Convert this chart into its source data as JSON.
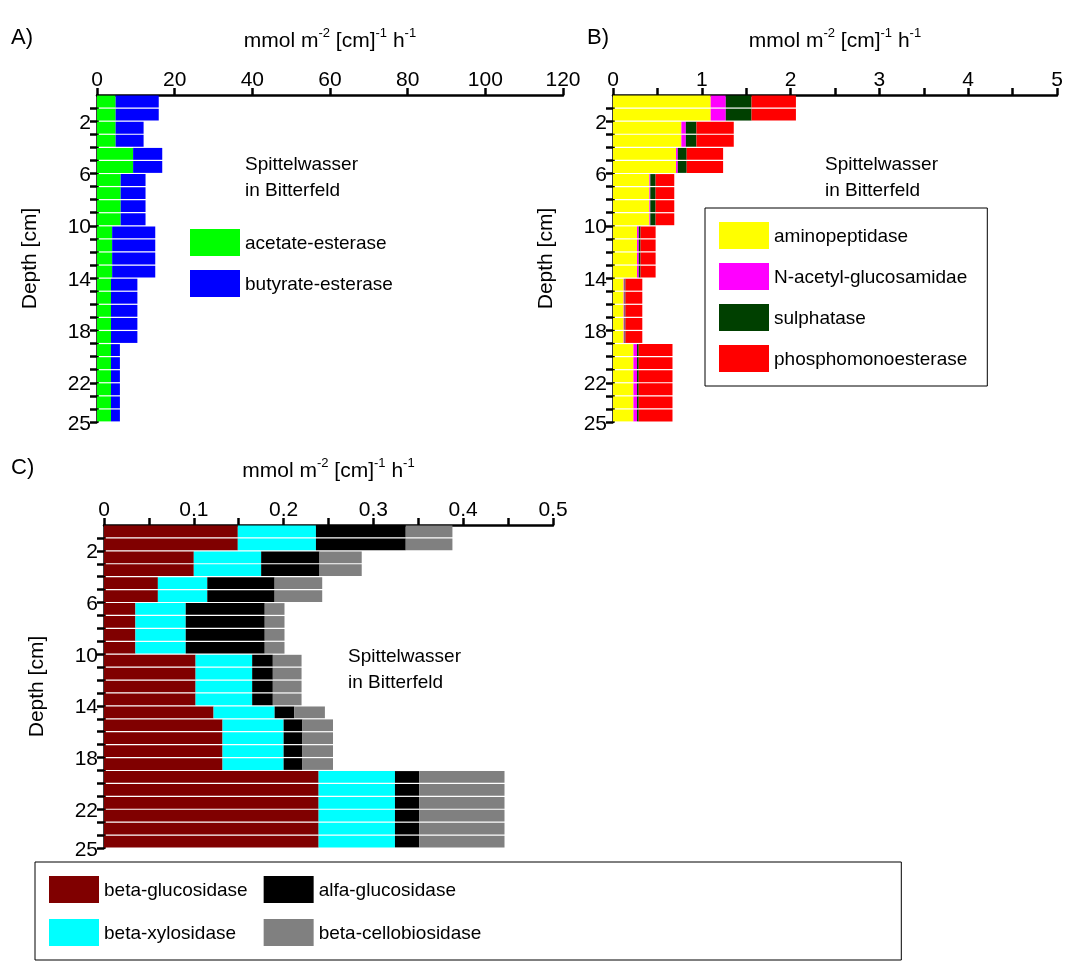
{
  "chart_data": [
    {
      "type": "bar",
      "orientation": "horizontal",
      "stacked": true,
      "title": "A)",
      "xlabel": "mmol m$^{-2}$ [cm]$^{-1}$ h$^{-1}$",
      "ylabel": "Depth [cm]",
      "x": [
        0.5,
        1.5,
        2.5,
        3.5,
        4.5,
        5.5,
        6.5,
        7.5,
        8.5,
        9.5,
        10.5,
        11.5,
        12.5,
        13.5,
        14.5,
        15.5,
        16.5,
        17.5,
        18.5,
        19.5,
        20.5,
        21.5,
        22.5,
        23.5,
        24.5
      ],
      "series": [
        {
          "name": "acetate-esterase",
          "color": "#00ff00",
          "values": [
            4.8,
            4.8,
            4.8,
            4.8,
            9.3,
            9.3,
            6.1,
            6.1,
            6.1,
            6.1,
            3.9,
            3.9,
            3.9,
            3.9,
            3.6,
            3.6,
            3.6,
            3.6,
            3.6,
            3.6,
            3.6,
            3.6,
            3.6,
            3.6,
            3.6
          ]
        },
        {
          "name": "butyrate-esterase",
          "color": "#0000ff",
          "values": [
            11.1,
            11.1,
            7.2,
            7.2,
            7.5,
            7.5,
            6.4,
            6.4,
            6.4,
            6.4,
            11.1,
            11.1,
            11.1,
            11.1,
            6.8,
            6.8,
            6.8,
            6.8,
            6.8,
            2.3,
            2.3,
            2.3,
            2.3,
            2.3,
            2.3
          ]
        }
      ],
      "xlim": [
        0,
        120
      ],
      "xticks": [
        0,
        20,
        40,
        60,
        80,
        100,
        120
      ],
      "ylim": [
        25,
        0
      ],
      "yticks": [
        {
          "value": 1,
          "label": null
        },
        2,
        {
          "value": 3,
          "label": null
        },
        {
          "value": 4,
          "label": null
        },
        {
          "value": 5,
          "label": null
        },
        6,
        {
          "value": 7,
          "label": null
        },
        {
          "value": 8,
          "label": null
        },
        {
          "value": 9,
          "label": null
        },
        10,
        {
          "value": 11,
          "label": null
        },
        {
          "value": 12,
          "label": null
        },
        {
          "value": 13,
          "label": null
        },
        14,
        {
          "value": 15,
          "label": null
        },
        {
          "value": 16,
          "label": null
        },
        {
          "value": 17,
          "label": null
        },
        18,
        {
          "value": 19,
          "label": null
        },
        {
          "value": 20,
          "label": null
        },
        {
          "value": 21,
          "label": null
        },
        22,
        {
          "value": 23,
          "label": null
        },
        {
          "value": 24,
          "label": null
        },
        25
      ],
      "legend": "bottom left",
      "annotations": [
        "Spittelwasser in Bitterfeld"
      ]
    },
    {
      "type": "bar",
      "orientation": "horizontal",
      "stacked": true,
      "title": "B)",
      "xlabel": "mmol m$^{-2}$ [cm]$^{-1}$ h$^{-1}$",
      "ylabel": "Depth [cm]",
      "x": [
        0.5,
        1.5,
        2.5,
        3.5,
        4.5,
        5.5,
        6.5,
        7.5,
        8.5,
        9.5,
        10.5,
        11.5,
        12.5,
        13.5,
        14.5,
        15.5,
        16.5,
        17.5,
        18.5,
        19.5,
        20.5,
        21.5,
        22.5,
        23.5,
        24.5
      ],
      "series": [
        {
          "name": "aminopeptidase",
          "color": "#ffff00",
          "values": [
            1.1,
            1.1,
            0.77,
            0.77,
            0.71,
            0.71,
            0.41,
            0.41,
            0.41,
            0.41,
            0.27,
            0.27,
            0.27,
            0.27,
            0.12,
            0.12,
            0.12,
            0.12,
            0.12,
            0.23,
            0.23,
            0.23,
            0.23,
            0.23,
            0.23
          ]
        },
        {
          "name": "N-acetyl-glucosamidae",
          "color": "#ff00ff",
          "values": [
            0.17,
            0.17,
            0.05,
            0.05,
            0.02,
            0.02,
            0.01,
            0.01,
            0.01,
            0.01,
            0.02,
            0.02,
            0.02,
            0.02,
            0.01,
            0.01,
            0.01,
            0.01,
            0.01,
            0.04,
            0.04,
            0.04,
            0.04,
            0.04,
            0.04
          ]
        },
        {
          "name": "sulphatase",
          "color": "#004000",
          "values": [
            0.29,
            0.29,
            0.12,
            0.12,
            0.1,
            0.1,
            0.06,
            0.06,
            0.06,
            0.06,
            0.02,
            0.02,
            0.02,
            0.02,
            0.01,
            0.01,
            0.01,
            0.01,
            0.01,
            0.02,
            0.02,
            0.02,
            0.02,
            0.02,
            0.02
          ]
        },
        {
          "name": "phosphomonoesterase",
          "color": "#ff0000",
          "values": [
            0.5,
            0.5,
            0.42,
            0.42,
            0.41,
            0.41,
            0.21,
            0.21,
            0.21,
            0.21,
            0.17,
            0.17,
            0.17,
            0.17,
            0.19,
            0.19,
            0.19,
            0.19,
            0.19,
            0.38,
            0.38,
            0.38,
            0.38,
            0.38,
            0.38
          ]
        }
      ],
      "xlim": [
        0,
        5
      ],
      "xticks": [
        0,
        {
          "value": 0.5,
          "label": null
        },
        1,
        {
          "value": 1.5,
          "label": null
        },
        2,
        {
          "value": 2.5,
          "label": null
        },
        3,
        {
          "value": 3.5,
          "label": null
        },
        4,
        {
          "value": 4.5,
          "label": null
        },
        5
      ],
      "ylim": [
        25,
        0
      ],
      "yticks": [
        {
          "value": 1,
          "label": null
        },
        2,
        {
          "value": 3,
          "label": null
        },
        {
          "value": 4,
          "label": null
        },
        {
          "value": 5,
          "label": null
        },
        6,
        {
          "value": 7,
          "label": null
        },
        {
          "value": 8,
          "label": null
        },
        {
          "value": 9,
          "label": null
        },
        10,
        {
          "value": 11,
          "label": null
        },
        {
          "value": 12,
          "label": null
        },
        {
          "value": 13,
          "label": null
        },
        14,
        {
          "value": 15,
          "label": null
        },
        {
          "value": 16,
          "label": null
        },
        {
          "value": 17,
          "label": null
        },
        18,
        {
          "value": 19,
          "label": null
        },
        {
          "value": 20,
          "label": null
        },
        {
          "value": 21,
          "label": null
        },
        22,
        {
          "value": 23,
          "label": null
        },
        {
          "value": 24,
          "label": null
        },
        25
      ],
      "legend": "bottom right",
      "annotations": [
        "Spittelwasser in Bitterfeld"
      ]
    },
    {
      "type": "bar",
      "orientation": "horizontal",
      "stacked": true,
      "title": "C)",
      "xlabel": "mmol m$^{-2}$ [cm]$^{-1}$ h$^{-1}$",
      "ylabel": "Depth [cm]",
      "x": [
        0.5,
        1.5,
        2.5,
        3.5,
        4.5,
        5.5,
        6.5,
        7.5,
        8.5,
        9.5,
        10.5,
        11.5,
        12.5,
        13.5,
        14.5,
        15.5,
        16.5,
        17.5,
        18.5,
        19.5,
        20.5,
        21.5,
        22.5,
        23.5,
        24.5
      ],
      "series": [
        {
          "name": "beta-glucosidase",
          "color": "#800000",
          "values": [
            0.149,
            0.149,
            0.1,
            0.1,
            0.06,
            0.06,
            0.035,
            0.035,
            0.035,
            0.035,
            0.102,
            0.102,
            0.102,
            0.102,
            0.122,
            0.132,
            0.132,
            0.132,
            0.132,
            0.239,
            0.239,
            0.239,
            0.239,
            0.239,
            0.239
          ]
        },
        {
          "name": "beta-xylosidase",
          "color": "#00ffff",
          "values": [
            0.087,
            0.087,
            0.075,
            0.075,
            0.055,
            0.055,
            0.056,
            0.056,
            0.056,
            0.056,
            0.063,
            0.063,
            0.063,
            0.063,
            0.068,
            0.068,
            0.068,
            0.068,
            0.068,
            0.085,
            0.085,
            0.085,
            0.085,
            0.085,
            0.085
          ]
        },
        {
          "name": "alfa-glucosidase",
          "color": "#000000",
          "values": [
            0.1,
            0.1,
            0.065,
            0.065,
            0.075,
            0.075,
            0.088,
            0.088,
            0.088,
            0.088,
            0.023,
            0.023,
            0.023,
            0.023,
            0.022,
            0.021,
            0.021,
            0.021,
            0.021,
            0.027,
            0.027,
            0.027,
            0.027,
            0.027,
            0.027
          ]
        },
        {
          "name": "beta-cellobiosidase",
          "color": "#808080",
          "values": [
            0.052,
            0.052,
            0.047,
            0.047,
            0.053,
            0.053,
            0.022,
            0.022,
            0.022,
            0.022,
            0.032,
            0.032,
            0.032,
            0.032,
            0.034,
            0.034,
            0.034,
            0.034,
            0.034,
            0.095,
            0.095,
            0.095,
            0.095,
            0.095,
            0.095
          ]
        }
      ],
      "xlim": [
        0,
        0.5
      ],
      "xticks": [
        0,
        {
          "value": 0.05,
          "label": null
        },
        0.1,
        {
          "value": 0.15,
          "label": null
        },
        0.2,
        {
          "value": 0.25,
          "label": null
        },
        0.3,
        {
          "value": 0.35,
          "label": null
        },
        0.4,
        {
          "value": 0.45,
          "label": null
        },
        0.5
      ],
      "ylim": [
        25,
        0
      ],
      "yticks": [
        {
          "value": 1,
          "label": null
        },
        2,
        {
          "value": 3,
          "label": null
        },
        {
          "value": 4,
          "label": null
        },
        {
          "value": 5,
          "label": null
        },
        6,
        {
          "value": 7,
          "label": null
        },
        {
          "value": 8,
          "label": null
        },
        {
          "value": 9,
          "label": null
        },
        10,
        {
          "value": 11,
          "label": null
        },
        {
          "value": 12,
          "label": null
        },
        {
          "value": 13,
          "label": null
        },
        14,
        {
          "value": 15,
          "label": null
        },
        {
          "value": 16,
          "label": null
        },
        {
          "value": 17,
          "label": null
        },
        18,
        {
          "value": 19,
          "label": null
        },
        {
          "value": 20,
          "label": null
        },
        {
          "value": 21,
          "label": null
        },
        22,
        {
          "value": 23,
          "label": null
        },
        {
          "value": 24,
          "label": null
        },
        25
      ],
      "legend": "bottom",
      "annotations": [
        "Spittelwasser in Bitterfeld"
      ]
    }
  ]
}
